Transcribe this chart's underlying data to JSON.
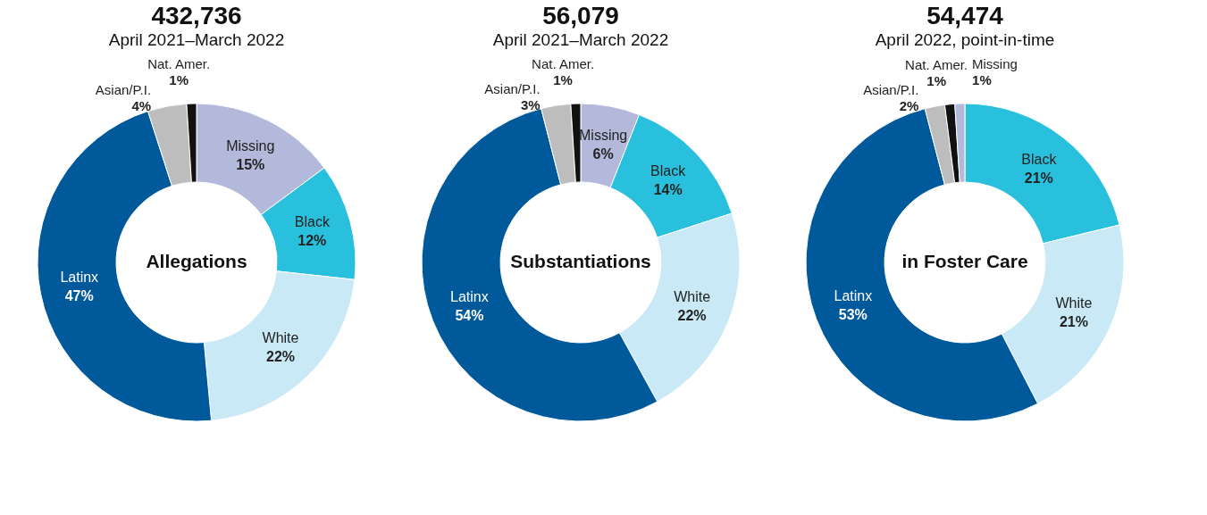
{
  "chart_data": [
    {
      "type": "donut",
      "title": "432,736",
      "subtitle": "April 2021–March 2022",
      "annotations": [
        "Allegations"
      ],
      "categories": [
        "Missing",
        "Black",
        "White",
        "Latinx",
        "Asian/P.I.",
        "Nat. Amer."
      ],
      "values": [
        15,
        12,
        22,
        47,
        4,
        1
      ],
      "value_labels": [
        "15%",
        "12%",
        "22%",
        "47%",
        "4%",
        "1%"
      ],
      "colors": [
        "#b3b9da",
        "#29c0de",
        "#c8e9f5",
        "#00599a",
        "#bdbdbd",
        "#111111"
      ]
    },
    {
      "type": "donut",
      "title": "56,079",
      "subtitle": "April 2021–March 2022",
      "annotations": [
        "Substantiations"
      ],
      "categories": [
        "Missing",
        "Black",
        "White",
        "Latinx",
        "Asian/P.I.",
        "Nat. Amer."
      ],
      "values": [
        6,
        14,
        22,
        54,
        3,
        1
      ],
      "value_labels": [
        "6%",
        "14%",
        "22%",
        "54%",
        "3%",
        "1%"
      ],
      "colors": [
        "#b3b9da",
        "#29c0de",
        "#c8e9f5",
        "#00599a",
        "#bdbdbd",
        "#111111"
      ]
    },
    {
      "type": "donut",
      "title": "54,474",
      "subtitle": "April 2022, point-in-time",
      "annotations": [
        "in Foster Care"
      ],
      "categories": [
        "Black",
        "White",
        "Latinx",
        "Asian/P.I.",
        "Nat. Amer.",
        "Missing"
      ],
      "values": [
        21,
        21,
        53,
        2,
        1,
        1
      ],
      "value_labels": [
        "21%",
        "21%",
        "53%",
        "2%",
        "1%",
        "1%"
      ],
      "colors": [
        "#29c0de",
        "#c8e9f5",
        "#00599a",
        "#bdbdbd",
        "#111111",
        "#b3b9da"
      ]
    }
  ]
}
